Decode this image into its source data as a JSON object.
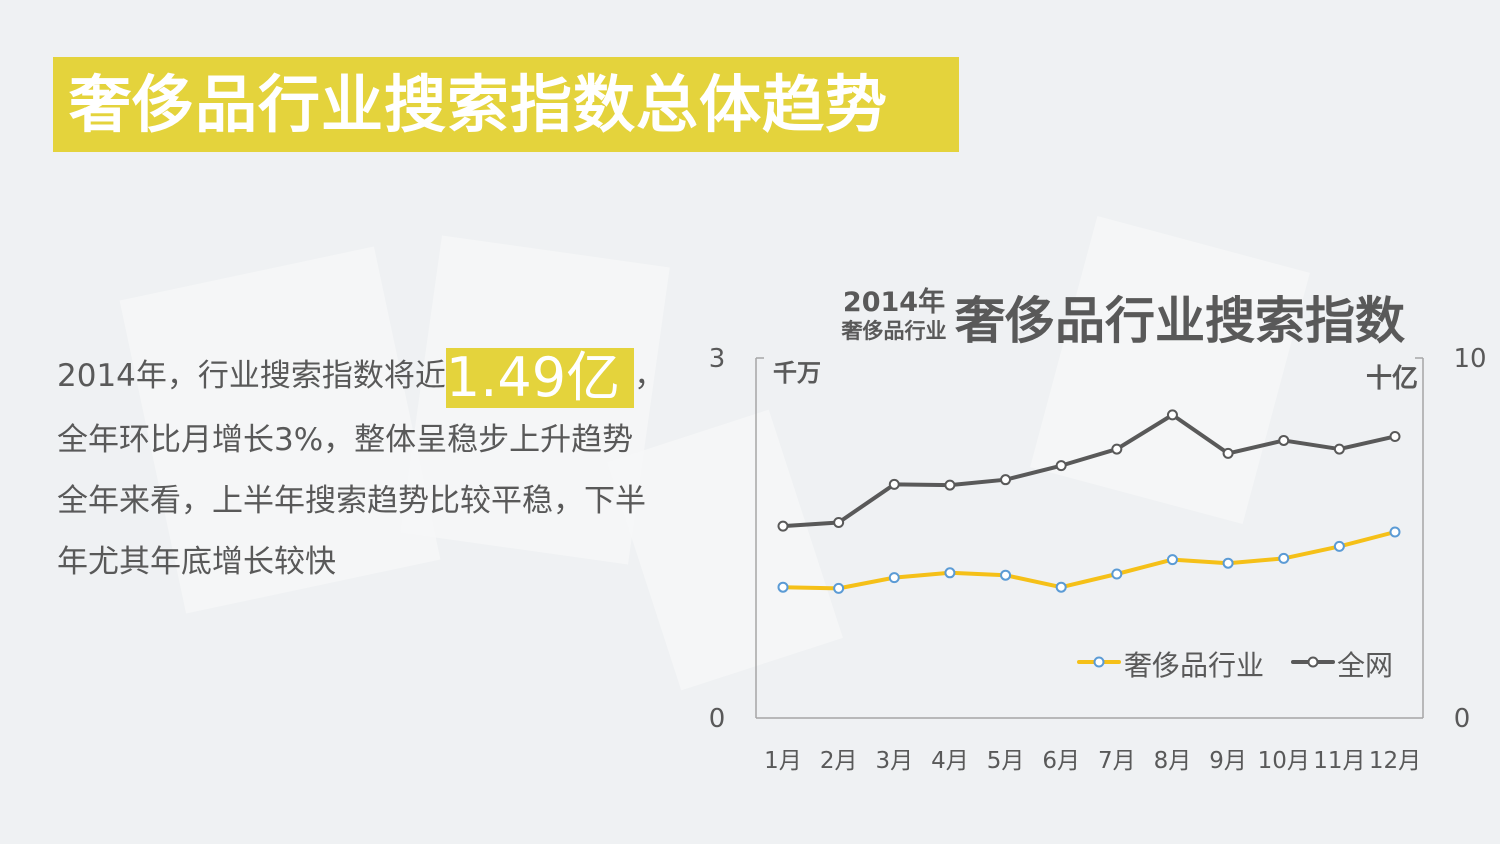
{
  "header": {
    "title": "奢侈品行业搜索指数总体趋势"
  },
  "description": {
    "line1_prefix": "2014年，行业搜索指数将近",
    "line1_highlight": "1.49亿",
    "line1_suffix": "，",
    "line2": "全年环比月增长3%，整体呈稳步上升趋势",
    "line3": "全年来看，上半年搜索趋势比较平稳，下半",
    "line4": "年尤其年底增长较快"
  },
  "chart_title": {
    "year": "2014年",
    "subject": "奢侈品行业",
    "main": "奢侈品行业搜索指数"
  },
  "chart_data": {
    "type": "line",
    "categories": [
      "1月",
      "2月",
      "3月",
      "4月",
      "5月",
      "6月",
      "7月",
      "8月",
      "9月",
      "10月",
      "11月",
      "12月"
    ],
    "left_axis": {
      "unit": "千万",
      "min": 0,
      "max": 3,
      "min_label": "0",
      "max_label": "3"
    },
    "right_axis": {
      "unit": "十亿",
      "min": 0,
      "max": 10,
      "min_label": "0",
      "max_label": "10"
    },
    "series": [
      {
        "name": "奢侈品行业",
        "axis": "left",
        "color": "#f5c018",
        "marker_color": "#5b9bd5",
        "values": [
          1.09,
          1.08,
          1.17,
          1.21,
          1.19,
          1.09,
          1.2,
          1.32,
          1.29,
          1.33,
          1.43,
          1.55
        ]
      },
      {
        "name": "全网",
        "axis": "right",
        "color": "#595959",
        "marker_color": "#595959",
        "values": [
          5.33,
          5.43,
          6.49,
          6.47,
          6.62,
          7.01,
          7.47,
          8.42,
          7.35,
          7.71,
          7.47,
          7.82
        ]
      }
    ],
    "legend_position": "bottom-right",
    "grid": false
  }
}
